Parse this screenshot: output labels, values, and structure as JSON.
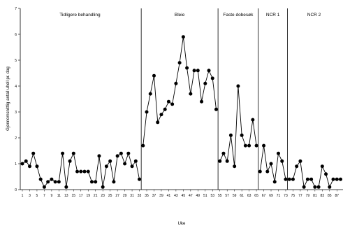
{
  "chart_data": {
    "type": "line",
    "title": "",
    "xlabel": "Uke",
    "ylabel": "Gjennomsnittlig antall uhell pr. dag",
    "ylim": [
      0,
      7
    ],
    "yticks": [
      0,
      1,
      2,
      3,
      4,
      5,
      6,
      7
    ],
    "xlim": [
      0,
      88
    ],
    "xticks": [
      1,
      3,
      5,
      7,
      9,
      11,
      13,
      15,
      17,
      19,
      21,
      23,
      25,
      27,
      29,
      31,
      33,
      35,
      37,
      39,
      41,
      43,
      45,
      47,
      49,
      51,
      53,
      55,
      57,
      59,
      61,
      63,
      65,
      67,
      69,
      71,
      73,
      75,
      77,
      79,
      81,
      83,
      85,
      87
    ],
    "grid": false,
    "marker": "filled-circle",
    "line_color": "#000000",
    "phases": [
      {
        "label": "Tidligere behandling",
        "x": [
          1,
          2,
          3,
          4,
          5,
          6,
          7,
          8,
          9,
          10,
          11,
          12,
          13,
          14,
          15,
          16,
          17,
          18,
          19,
          20,
          21,
          22,
          23,
          24,
          25,
          26,
          27,
          28,
          29,
          30,
          31,
          32,
          33
        ],
        "y": [
          1.0,
          1.1,
          0.9,
          1.4,
          0.9,
          0.4,
          0.1,
          0.3,
          0.4,
          0.3,
          0.3,
          1.4,
          0.1,
          1.1,
          1.4,
          0.7,
          0.7,
          0.7,
          0.7,
          0.3,
          0.3,
          1.3,
          0.1,
          0.9,
          1.1,
          0.3,
          1.3,
          1.4,
          1.0,
          1.4,
          0.9,
          1.1,
          0.4
        ]
      },
      {
        "label": "Bleie",
        "x": [
          34,
          35,
          36,
          37,
          38,
          39,
          40,
          41,
          42,
          43,
          44,
          45,
          46,
          47,
          48,
          49,
          50,
          51,
          52,
          53,
          54
        ],
        "y": [
          1.7,
          3.0,
          3.7,
          4.4,
          2.6,
          2.9,
          3.1,
          3.4,
          3.3,
          4.1,
          4.9,
          5.9,
          4.7,
          3.7,
          4.6,
          4.6,
          3.4,
          4.1,
          4.6,
          4.3,
          3.1
        ]
      },
      {
        "label": "Faste dobesøk",
        "x": [
          55,
          56,
          57,
          58,
          59,
          60,
          61,
          62,
          63,
          64,
          65
        ],
        "y": [
          1.1,
          1.4,
          1.1,
          2.1,
          0.9,
          4.0,
          2.1,
          1.7,
          1.7,
          2.7,
          1.7
        ]
      },
      {
        "label": "NCR 1",
        "x": [
          66,
          67,
          68,
          69,
          70,
          71,
          72,
          73
        ],
        "y": [
          0.7,
          1.7,
          0.7,
          1.0,
          0.3,
          1.4,
          1.1,
          0.4
        ]
      },
      {
        "label": "NCR 2",
        "x": [
          74,
          75,
          76,
          77,
          78,
          79,
          80,
          81,
          82,
          83,
          84,
          85,
          86,
          87,
          88
        ],
        "y": [
          0.4,
          0.4,
          0.9,
          1.1,
          0.1,
          0.4,
          0.4,
          0.1,
          0.1,
          0.9,
          0.6,
          0.1,
          0.4,
          0.4,
          0.4
        ]
      }
    ],
    "phase_change_lines": [
      33.5,
      54.5,
      65.5,
      73.5
    ]
  }
}
